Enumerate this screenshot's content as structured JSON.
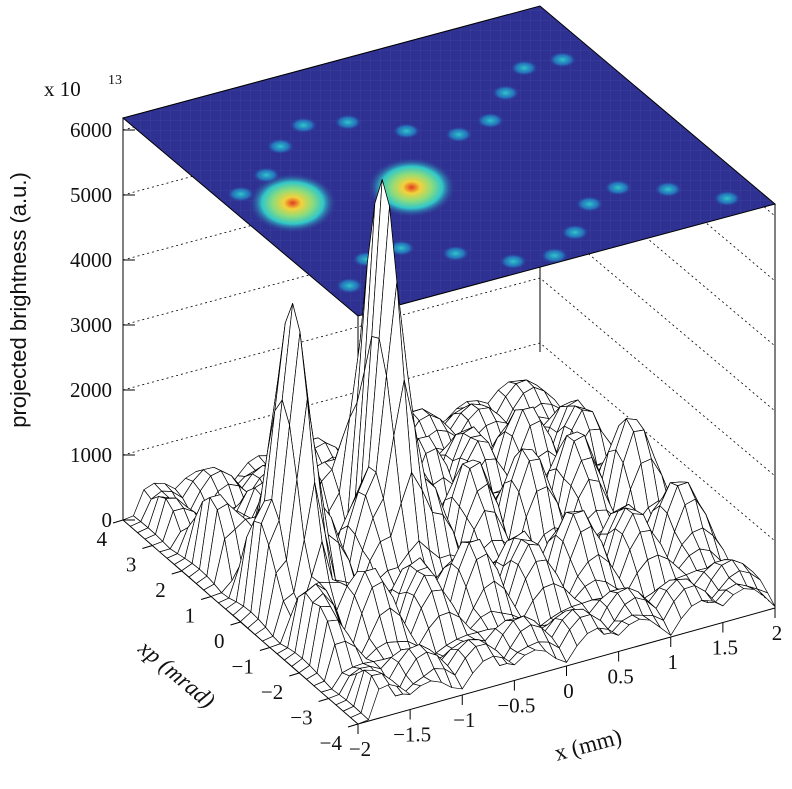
{
  "chart_data": {
    "type": "surface-lego",
    "projection": "3d-mesh-with-top-colour-map",
    "ylabel": "projected brightness (a.u.)",
    "xlabel": "x (mm)",
    "depth_label": "xp (mrad)",
    "scale_factor": {
      "prefix": "x 10",
      "exponent": "13"
    },
    "xlim": [
      -2,
      2
    ],
    "depth_lim": [
      -4,
      4
    ],
    "zlim": [
      0,
      6000
    ],
    "z_ticks": [
      "0",
      "1000",
      "2000",
      "3000",
      "4000",
      "5000",
      "6000"
    ],
    "x_ticks": [
      "−2",
      "−1.5",
      "−1",
      "−0.5",
      "0",
      "0.5",
      "1",
      "1.5",
      "2"
    ],
    "depth_ticks": [
      "−4",
      "−3",
      "−2",
      "−1",
      "0",
      "1",
      "2",
      "3",
      "4"
    ],
    "peaks": [
      {
        "x": -1.5,
        "xp": 0.0,
        "z": 4400
      },
      {
        "x": -0.5,
        "xp": 0.5,
        "z": 5850
      }
    ],
    "colormap": [
      "#2e3192",
      "#2b5fb8",
      "#1f9fd4",
      "#31c7c9",
      "#8fdc7a",
      "#f2d23c",
      "#e23b1e"
    ],
    "grid": true
  }
}
